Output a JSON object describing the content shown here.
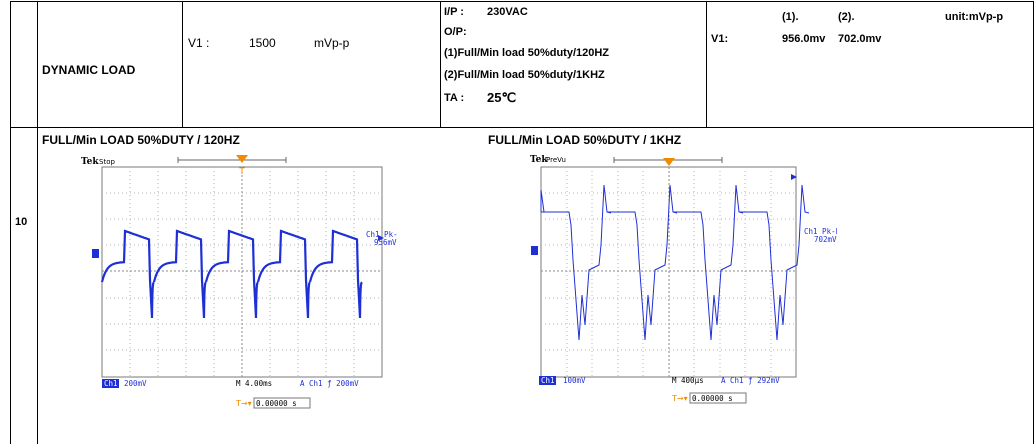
{
  "row_number": "10",
  "test_name": "DYNAMIC LOAD",
  "spec": {
    "label": "V1 :",
    "value": "1500",
    "unit": "mVp-p"
  },
  "conditions": {
    "ip_label": "I/P :",
    "ip_value": "230VAC",
    "op_label": "O/P:",
    "op_line1": "(1)Full/Min load 50%duty/120HZ",
    "op_line2": "(2)Full/Min load 50%duty/1KHZ",
    "ta_label": "TA :",
    "ta_value": "25℃"
  },
  "results": {
    "col1": "(1).",
    "col2": "(2).",
    "unit": "unit:mVp-p",
    "row_label": "V1:",
    "val1": "956.0mv",
    "val2": "702.0mv"
  },
  "captures": [
    {
      "title": "FULL/Min LOAD 50%DUTY / 120HZ",
      "brand": "Tek",
      "status": "Stop",
      "meas_label": "Ch1 Pk-Pk",
      "meas_value": "956mV",
      "ch_label": "Ch1",
      "ch_scale": "200mV",
      "timebase": "M 4.00ms",
      "trigger": "A  Ch1  ƒ  200mV",
      "time_offset": "0.00000 s"
    },
    {
      "title": "FULL/Min LOAD 50%DUTY / 1KHZ",
      "brand": "Tek",
      "status": "PreVu",
      "meas_label": "Ch1 Pk-Pk",
      "meas_value": "702mV",
      "ch_label": "Ch1",
      "ch_scale": "100mV",
      "timebase": "M 400µs",
      "trigger": "A  Ch1  ƒ  292mV",
      "time_offset": "0.00000 s"
    }
  ],
  "colors": {
    "trace": "#1f2fd6",
    "marker": "#f08a00",
    "grid": "#9a9a9a"
  }
}
